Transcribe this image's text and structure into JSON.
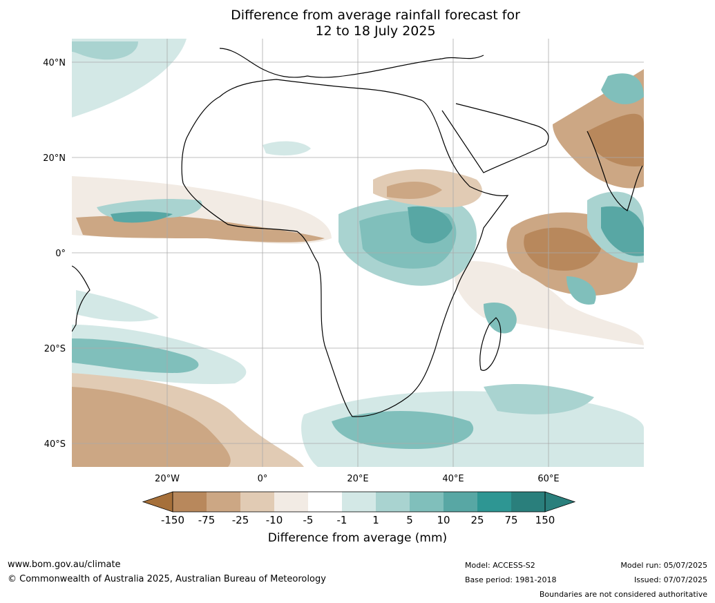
{
  "title": {
    "line1": "Difference from average rainfall forecast for",
    "line2": "12 to 18 July 2025"
  },
  "map": {
    "lat_labels": [
      "40°N",
      "20°N",
      "0°",
      "20°S",
      "40°S"
    ],
    "lon_labels": [
      "20°W",
      "0°",
      "20°E",
      "40°E",
      "60°E"
    ]
  },
  "colorbar": {
    "title": "Difference from average (mm)",
    "tick_labels": [
      "-150",
      "-75",
      "-25",
      "-10",
      "-5",
      "-1",
      "1",
      "5",
      "10",
      "25",
      "75",
      "150"
    ],
    "colors": [
      "#a6703a",
      "#b8885c",
      "#cca784",
      "#e1cbb4",
      "#f2ebe4",
      "#ffffff",
      "#d3e8e6",
      "#a9d3d0",
      "#80bfbb",
      "#58a7a4",
      "#2e9693",
      "#2a7f7c"
    ]
  },
  "footer": {
    "url": "www.bom.gov.au/climate",
    "copyright": "© Commonwealth of Australia 2025, Australian Bureau of Meteorology",
    "model": "Model: ACCESS-S2",
    "base_period": "Base period: 1981-2018",
    "model_run": "Model run: 05/07/2025",
    "issued": "Issued: 07/07/2025",
    "boundaries": "Boundaries are not considered authoritative"
  }
}
